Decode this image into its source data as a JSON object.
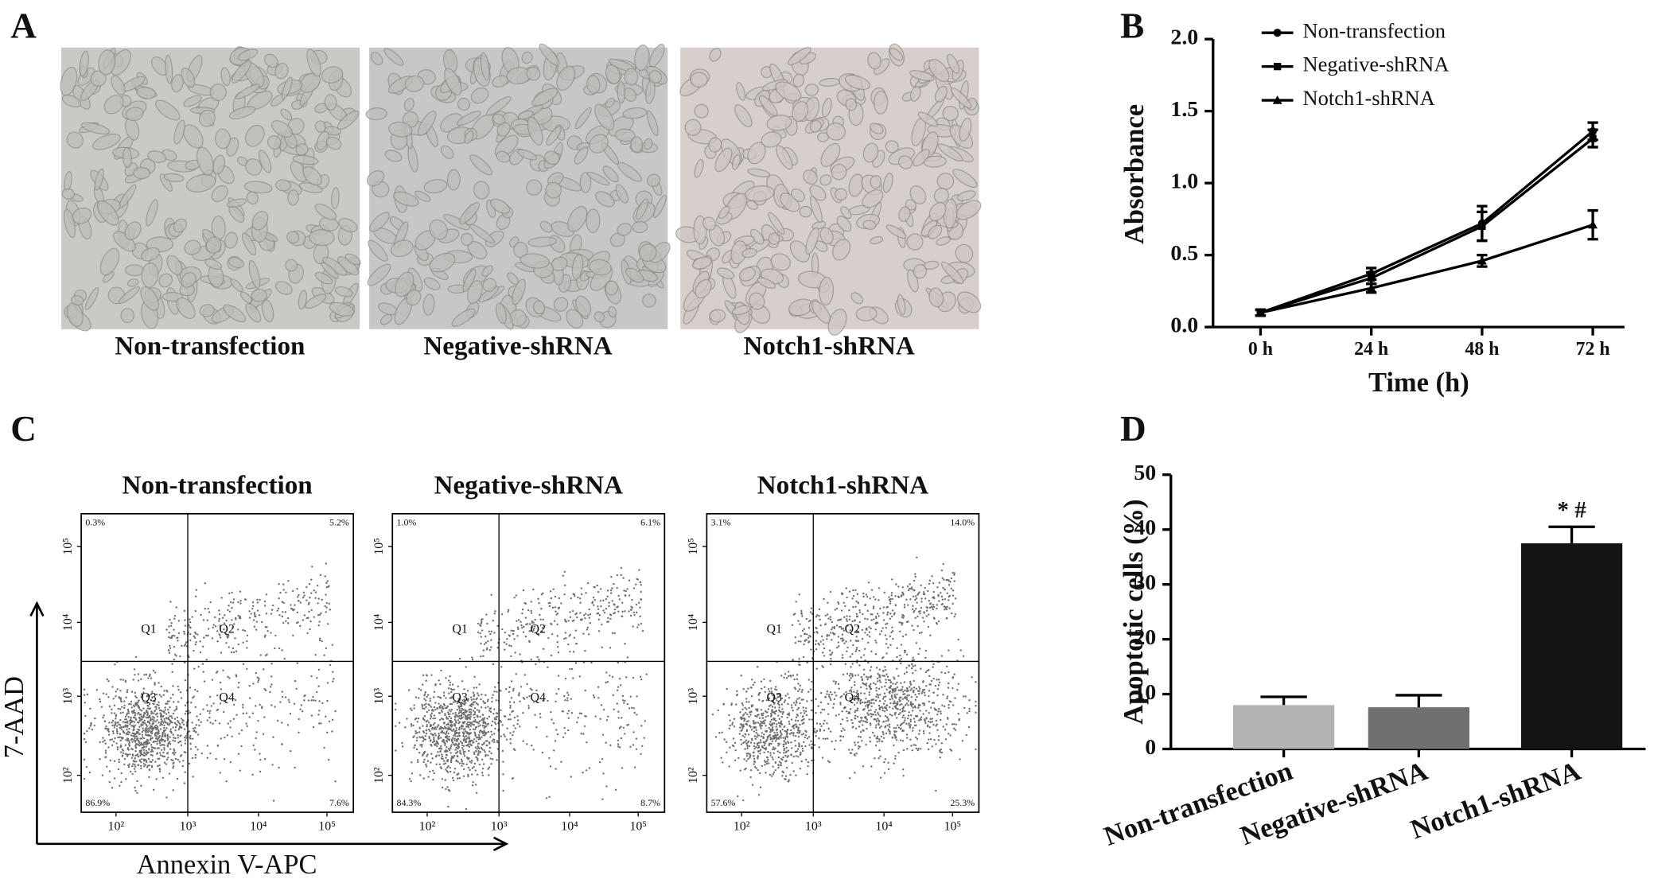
{
  "panel_labels": [
    "A",
    "B",
    "C",
    "D"
  ],
  "panel_a": {
    "images": [
      {
        "label": "Non-transfection"
      },
      {
        "label": "Negative-shRNA"
      },
      {
        "label": "Notch1-shRNA"
      }
    ]
  },
  "panel_c": {
    "y_axis_label": "7-AAD",
    "x_axis_label": "Annexin V-APC",
    "xtick_labels": [
      "10²",
      "10³",
      "10⁴",
      "10⁵"
    ],
    "ytick_labels": [
      "10²",
      "10³",
      "10⁴",
      "10⁵"
    ],
    "quadrant_labels": [
      "Q1",
      "Q2",
      "Q3",
      "Q4"
    ],
    "plots": [
      {
        "title": "Non-transfection",
        "quadrant_percents": [
          "0.3%",
          "5.2%",
          "86.9%",
          "7.6%"
        ]
      },
      {
        "title": "Negative-shRNA",
        "quadrant_percents": [
          "1.0%",
          "6.1%",
          "84.3%",
          "8.7%"
        ]
      },
      {
        "title": "Notch1-shRNA",
        "quadrant_percents": [
          "3.1%",
          "14.0%",
          "57.6%",
          "25.3%"
        ]
      }
    ]
  },
  "chart_data": [
    {
      "type": "line",
      "x_label": "Time (h)",
      "y_label": "Absorbance",
      "categories": [
        "0 h",
        "24 h",
        "48 h",
        "72 h"
      ],
      "ylim": [
        0,
        2
      ],
      "yticks": [
        {
          "value": 0,
          "label": "0.0"
        },
        {
          "value": 0.5,
          "label": "0.5"
        },
        {
          "value": 1,
          "label": "1.0"
        },
        {
          "value": 1.5,
          "label": "1.5"
        },
        {
          "value": 2,
          "label": "2.0"
        }
      ],
      "legend": "upper left",
      "series": [
        {
          "name": "Non-transfection",
          "color": "#000000",
          "marker": "circle",
          "values": [
            0.1,
            0.37,
            0.72,
            1.36
          ],
          "errors": [
            0.02,
            0.04,
            0.12,
            0.06
          ]
        },
        {
          "name": "Negative-shRNA",
          "color": "#000000",
          "marker": "square",
          "values": [
            0.1,
            0.34,
            0.7,
            1.31
          ],
          "errors": [
            0.02,
            0.04,
            0.1,
            0.06
          ]
        },
        {
          "name": "Notch1-shRNA",
          "color": "#000000",
          "marker": "triangle",
          "values": [
            0.1,
            0.27,
            0.46,
            0.71
          ],
          "errors": [
            0.02,
            0.03,
            0.04,
            0.1
          ]
        }
      ]
    },
    {
      "type": "bar",
      "y_label": "Apoptotic cells (%)",
      "categories": [
        "Non-transfection",
        "Negative-shRNA",
        "Notch1-shRNA"
      ],
      "values": [
        8.0,
        7.6,
        37.5
      ],
      "errors": [
        1.5,
        2.2,
        3.0
      ],
      "colors": [
        "#b3b3b3",
        "#707070",
        "#141414"
      ],
      "ylim": [
        0,
        50
      ],
      "yticks": [
        0,
        10,
        20,
        30,
        40,
        50
      ],
      "annotation": "* #"
    }
  ]
}
